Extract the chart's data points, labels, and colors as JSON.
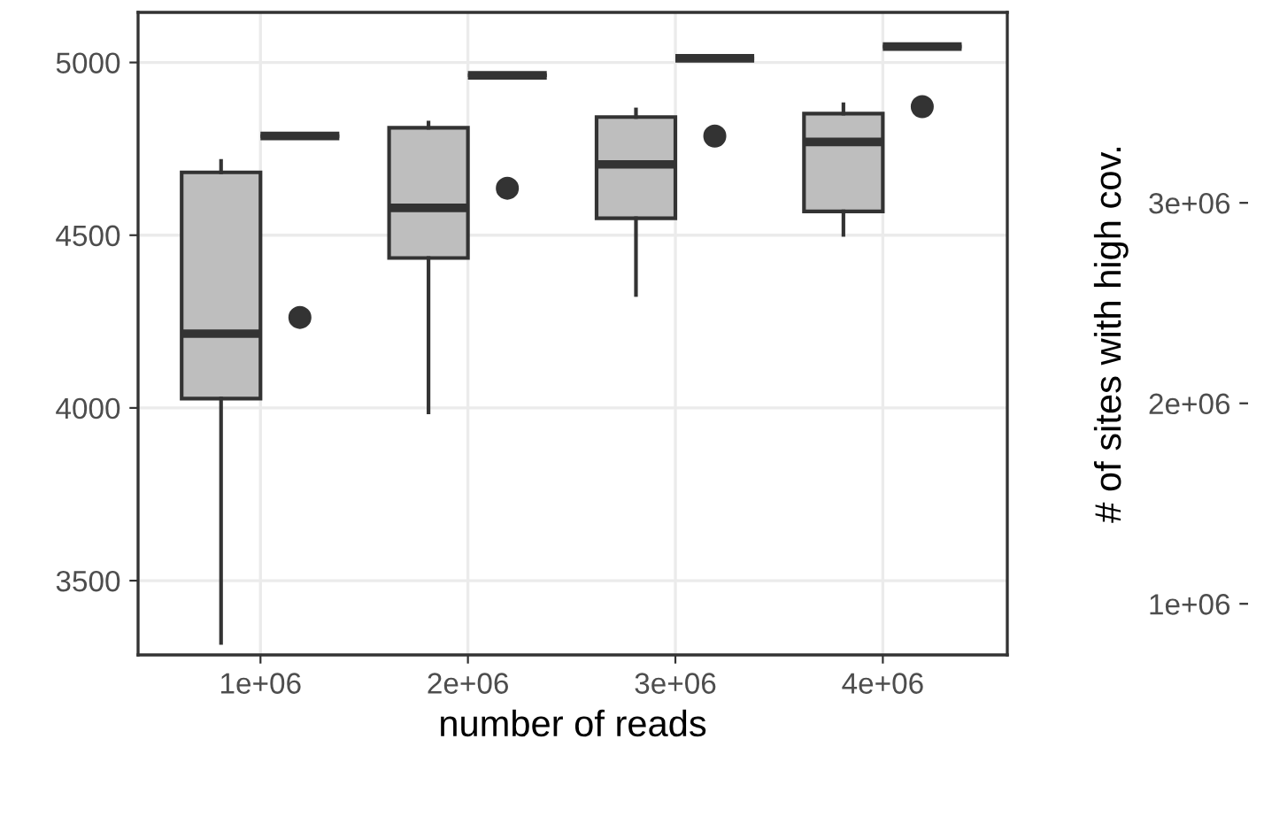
{
  "chart_data": [
    {
      "type": "box",
      "xlabel": "number of reads",
      "xlim": [
        410000,
        4600000
      ],
      "xticks": [
        {
          "value": 1000000,
          "label": "1e+06"
        },
        {
          "value": 2000000,
          "label": "2e+06"
        },
        {
          "value": 3000000,
          "label": "3e+06"
        },
        {
          "value": 4000000,
          "label": "4e+06"
        }
      ],
      "ylim": [
        3285,
        5145
      ],
      "yticks": [
        3500,
        4000,
        4500,
        5000
      ],
      "grid": true,
      "legend": false,
      "series": [
        {
          "type": "box",
          "x": [
            810000,
            1810000,
            2810000,
            3810000
          ],
          "color": "#bebebe",
          "boxes": [
            {
              "low": 3320,
              "q1": 4027,
              "median": 4215,
              "q3": 4682,
              "high": 4715
            },
            {
              "low": 3987,
              "q1": 4434,
              "median": 4579,
              "q3": 4811,
              "high": 4826
            },
            {
              "low": 4327,
              "q1": 4549,
              "median": 4705,
              "q3": 4842,
              "high": 4864
            },
            {
              "low": 4501,
              "q1": 4569,
              "median": 4770,
              "q3": 4852,
              "high": 4879
            }
          ]
        },
        {
          "type": "scatter",
          "marker": "circle",
          "color": "#333333",
          "x": [
            1190000,
            2190000,
            3190000,
            4190000
          ],
          "values": [
            4262,
            4636,
            4787,
            4872
          ]
        },
        {
          "type": "box",
          "color": "#333333",
          "x": [
            1190000,
            2190000,
            3190000,
            4190000
          ],
          "boxes": [
            {
              "low": 4787,
              "q1": 4787,
              "median": 4787,
              "q3": 4787,
              "high": 4787
            },
            {
              "low": 4963,
              "q1": 4963,
              "median": 4963,
              "q3": 4963,
              "high": 4963
            },
            {
              "low": 5012,
              "q1": 5012,
              "median": 5012,
              "q3": 5012,
              "high": 5012
            },
            {
              "low": 5046,
              "q1": 5046,
              "median": 5046,
              "q3": 5046,
              "high": 5046
            }
          ]
        }
      ],
      "y2label": "# of sites with high cov.",
      "y2lim": [
        745000,
        3950000
      ],
      "y2ticks": [
        {
          "value": 1000000,
          "label": "1e+06"
        },
        {
          "value": 2000000,
          "label": "2e+06"
        },
        {
          "value": 3000000,
          "label": "3e+06"
        }
      ]
    }
  ]
}
